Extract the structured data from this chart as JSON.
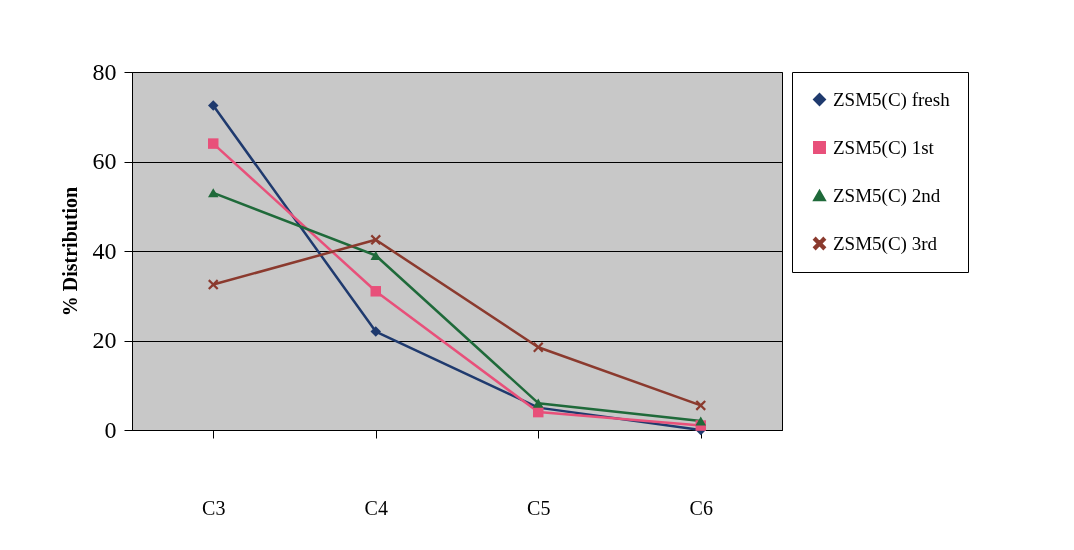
{
  "chart_data": {
    "type": "line",
    "ylabel": "% Distribution",
    "categories": [
      "C3",
      "C4",
      "C5",
      "C6"
    ],
    "ylim": [
      0,
      80
    ],
    "yticks": [
      0,
      20,
      40,
      60,
      80
    ],
    "grid": "y",
    "legend": "right",
    "line_style": "solid",
    "series": [
      {
        "name": "ZSM5(C) fresh",
        "color": "#1f3a6e",
        "marker": "diamond",
        "values": [
          72.5,
          22,
          5,
          0
        ]
      },
      {
        "name": "ZSM5(C) 1st",
        "color": "#e8507a",
        "marker": "square",
        "values": [
          64,
          31,
          4,
          1
        ]
      },
      {
        "name": "ZSM5(C) 2nd",
        "color": "#1f6a3a",
        "marker": "triangle",
        "values": [
          53,
          39,
          6,
          2
        ]
      },
      {
        "name": "ZSM5(C) 3rd",
        "color": "#8b3a2e",
        "marker": "cross",
        "values": [
          32.5,
          42.5,
          18.5,
          5.5
        ]
      }
    ]
  }
}
